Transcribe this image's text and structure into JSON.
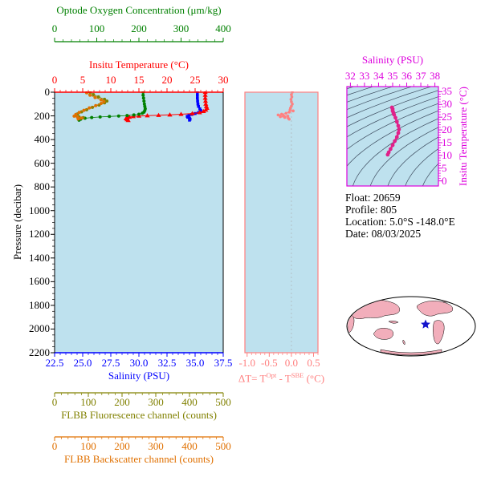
{
  "colors": {
    "plot_bg": "#BEE1EE",
    "oxygen": "#008000",
    "temperature": "#FF0000",
    "salinity": "#0000FF",
    "pressure": "#000000",
    "fluorescence": "#808000",
    "backscatter": "#E07000",
    "delta_t": "#FF8080",
    "ts": "#DD00DD",
    "ts_data": "#E0218A",
    "map_land": "#F2AEBB",
    "map_ocean": "#FFFFFF",
    "star": "#1414CC"
  },
  "axes": {
    "oxygen": {
      "title": "Optode Oxygen Concentration (μm/kg)",
      "ticks": [
        "0",
        "100",
        "200",
        "300",
        "400"
      ]
    },
    "temperature": {
      "title": "Insitu Temperature (°C)",
      "ticks": [
        "0",
        "5",
        "10",
        "15",
        "20",
        "25",
        "30"
      ]
    },
    "pressure": {
      "title": "Pressure (decibar)",
      "ticks": [
        "0",
        "200",
        "400",
        "600",
        "800",
        "1000",
        "1200",
        "1400",
        "1600",
        "1800",
        "2000",
        "2200"
      ]
    },
    "salinity": {
      "title": "Salinity (PSU)",
      "ticks": [
        "22.5",
        "25.0",
        "27.5",
        "30.0",
        "32.5",
        "35.0",
        "37.5"
      ]
    },
    "fluorescence": {
      "title": "FLBB Fluorescence channel (counts)",
      "ticks": [
        "0",
        "100",
        "200",
        "300",
        "400",
        "500"
      ]
    },
    "backscatter": {
      "title": "FLBB Backscatter channel (counts)",
      "ticks": [
        "0",
        "100",
        "200",
        "300",
        "400",
        "500"
      ]
    },
    "delta_t": {
      "title_prefix": "ΔT= T",
      "title_sup1": "Opt",
      "title_mid": " - T",
      "title_sup2": "SBE",
      "title_suffix": " (°C)",
      "ticks": [
        "-1.0",
        "-0.5",
        "0.0",
        "0.5"
      ]
    },
    "ts_salinity": {
      "title": "Salinity (PSU)",
      "ticks": [
        "32",
        "33",
        "34",
        "35",
        "36",
        "37",
        "38"
      ]
    },
    "ts_temperature": {
      "title": "Insitu Temperature (°C)",
      "ticks": [
        "0",
        "5",
        "10",
        "15",
        "20",
        "25",
        "30",
        "35"
      ]
    }
  },
  "info": {
    "float": "Float:  20659",
    "profile": "Profile:  805",
    "location": "Location:  5.0°S  -148.0°E",
    "date": "Date:  08/03/2025"
  },
  "chart_data": [
    {
      "type": "line",
      "ylabel": "Pressure (decibar)",
      "ylim": [
        0,
        2200
      ],
      "y_inverted": true,
      "series": [
        {
          "name": "salinity",
          "x_axis_label": "Salinity (PSU)",
          "xlim": [
            22.5,
            37.5
          ],
          "color": "#0000FF",
          "marker": "square",
          "points": [
            [
              35.2,
              0
            ],
            [
              35.2,
              25
            ],
            [
              35.2,
              50
            ],
            [
              35.22,
              75
            ],
            [
              35.25,
              100
            ],
            [
              35.3,
              120
            ],
            [
              35.42,
              140
            ],
            [
              35.5,
              155
            ],
            [
              35.45,
              165
            ],
            [
              35.3,
              172
            ],
            [
              35.0,
              180
            ],
            [
              34.7,
              188
            ],
            [
              34.45,
              196
            ],
            [
              34.3,
              204
            ],
            [
              34.35,
              212
            ],
            [
              34.5,
              220
            ],
            [
              34.55,
              228
            ],
            [
              34.5,
              236
            ]
          ]
        },
        {
          "name": "insitu_temperature",
          "x_axis_label": "Insitu Temperature (°C)",
          "xlim": [
            0,
            30
          ],
          "color": "#FF0000",
          "marker": "triangle",
          "points": [
            [
              26.8,
              0
            ],
            [
              26.8,
              25
            ],
            [
              26.8,
              50
            ],
            [
              26.85,
              75
            ],
            [
              26.9,
              100
            ],
            [
              27.0,
              120
            ],
            [
              27.1,
              135
            ],
            [
              26.9,
              150
            ],
            [
              26.5,
              162
            ],
            [
              25.8,
              172
            ],
            [
              24.5,
              180
            ],
            [
              22.5,
              186
            ],
            [
              20.5,
              191
            ],
            [
              18.5,
              195
            ],
            [
              16.5,
              198
            ],
            [
              15.0,
              201
            ],
            [
              14.0,
              205
            ],
            [
              13.3,
              210
            ],
            [
              12.9,
              216
            ],
            [
              12.7,
              223
            ],
            [
              12.9,
              231
            ],
            [
              13.1,
              238
            ]
          ]
        },
        {
          "name": "optode_oxygen",
          "x_axis_label": "Optode Oxygen Concentration (μm/kg)",
          "xlim": [
            0,
            400
          ],
          "color": "#008000",
          "marker": "circle",
          "points": [
            [
              210,
              0
            ],
            [
              210,
              25
            ],
            [
              211,
              50
            ],
            [
              212,
              75
            ],
            [
              213,
              100
            ],
            [
              214,
              120
            ],
            [
              215,
              140
            ],
            [
              214,
              155
            ],
            [
              212,
              168
            ],
            [
              208,
              178
            ],
            [
              200,
              186
            ],
            [
              188,
              192
            ],
            [
              172,
              197
            ],
            [
              152,
              201
            ],
            [
              130,
              205
            ],
            [
              108,
              209
            ],
            [
              88,
              214
            ],
            [
              72,
              220
            ],
            [
              62,
              228
            ],
            [
              58,
              236
            ]
          ]
        },
        {
          "name": "flbb_fluorescence",
          "x_axis_label": "FLBB Fluorescence channel (counts)",
          "xlim": [
            0,
            500
          ],
          "color": "#808000",
          "marker": "circle",
          "points": [
            [
              105,
              0
            ],
            [
              115,
              20
            ],
            [
              130,
              40
            ],
            [
              148,
              60
            ],
            [
              155,
              75
            ],
            [
              148,
              90
            ],
            [
              132,
              108
            ],
            [
              112,
              128
            ],
            [
              95,
              148
            ],
            [
              80,
              166
            ],
            [
              68,
              184
            ],
            [
              62,
              198
            ],
            [
              72,
              208
            ],
            [
              85,
              215
            ],
            [
              75,
              222
            ]
          ]
        },
        {
          "name": "flbb_backscatter",
          "x_axis_label": "FLBB Backscatter channel (counts)",
          "xlim": [
            0,
            500
          ],
          "color": "#E07000",
          "marker": "circle",
          "points": [
            [
              95,
              5
            ],
            [
              105,
              25
            ],
            [
              120,
              45
            ],
            [
              138,
              65
            ],
            [
              146,
              80
            ],
            [
              138,
              95
            ],
            [
              122,
              113
            ],
            [
              103,
              133
            ],
            [
              87,
              153
            ],
            [
              73,
              171
            ],
            [
              63,
              188
            ],
            [
              58,
              202
            ],
            [
              68,
              211
            ],
            [
              80,
              218
            ],
            [
              70,
              226
            ]
          ]
        }
      ]
    },
    {
      "type": "scatter",
      "xlabel": "ΔT= T^Opt - T^SBE (°C)",
      "xlim": [
        -1.05,
        0.6
      ],
      "ylabel": "Pressure (decibar)",
      "ylim": [
        0,
        2200
      ],
      "y_inverted": true,
      "series": [
        {
          "name": "delta_t",
          "color": "#FF8080",
          "marker": "circle",
          "points": [
            [
              0.02,
              0
            ],
            [
              0.0,
              20
            ],
            [
              0.01,
              40
            ],
            [
              -0.01,
              60
            ],
            [
              0.0,
              80
            ],
            [
              0.02,
              100
            ],
            [
              0.0,
              118
            ],
            [
              -0.02,
              134
            ],
            [
              -0.03,
              148
            ],
            [
              0.04,
              158
            ],
            [
              -0.05,
              168
            ],
            [
              -0.12,
              178
            ],
            [
              -0.22,
              186
            ],
            [
              -0.3,
              192
            ],
            [
              -0.18,
              197
            ],
            [
              -0.08,
              202
            ],
            [
              -0.25,
              207
            ],
            [
              -0.15,
              213
            ],
            [
              -0.07,
              220
            ],
            [
              -0.05,
              228
            ]
          ]
        }
      ]
    },
    {
      "type": "scatter",
      "xlabel": "Salinity (PSU)",
      "ylabel": "Insitu Temperature (°C)",
      "xlim": [
        31.75,
        38.25
      ],
      "ylim": [
        -2,
        37
      ],
      "background_contours": "sigma-theta isopycnals",
      "series": [
        {
          "name": "temperature_salinity",
          "color": "#E0218A",
          "marker": "circle",
          "points": [
            [
              34.95,
              28.8
            ],
            [
              35.0,
              28.2
            ],
            [
              35.0,
              27.5
            ],
            [
              35.05,
              26.8
            ],
            [
              35.1,
              26.0
            ],
            [
              35.2,
              24.8
            ],
            [
              35.3,
              23.2
            ],
            [
              35.4,
              21.6
            ],
            [
              35.45,
              20.2
            ],
            [
              35.4,
              18.8
            ],
            [
              35.3,
              17.2
            ],
            [
              35.15,
              15.6
            ],
            [
              35.0,
              14.0
            ],
            [
              34.85,
              12.5
            ],
            [
              34.72,
              11.2
            ],
            [
              34.65,
              10.3
            ]
          ]
        }
      ]
    }
  ]
}
